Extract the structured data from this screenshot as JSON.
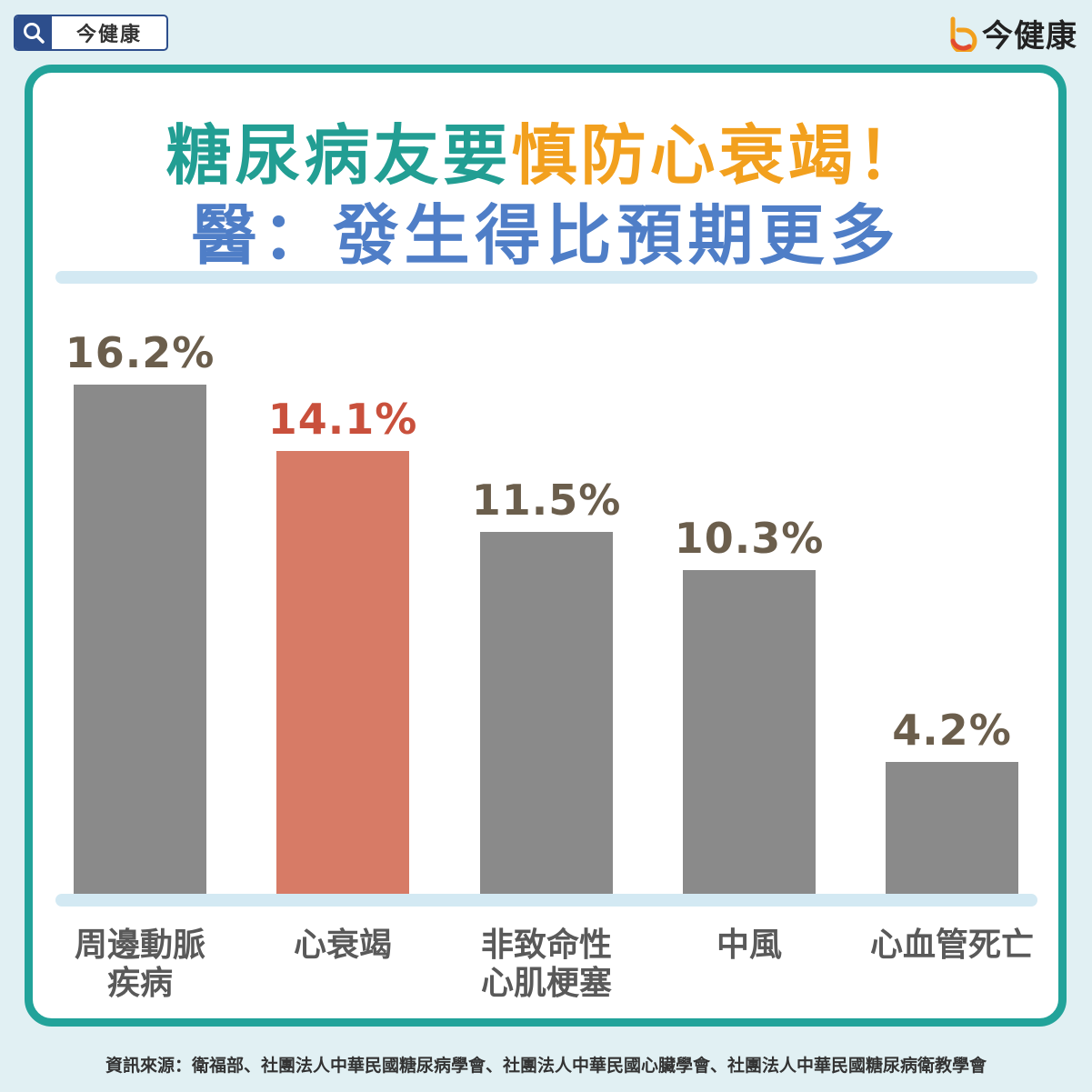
{
  "badge": {
    "text": "今健康",
    "icon": "search-icon"
  },
  "brand": {
    "logo_text": "今健康",
    "icon": "brand-logo-icon",
    "icon_colors": [
      "#f2a01e",
      "#e24a2f"
    ]
  },
  "title": {
    "line1_part1": "糖尿病友要",
    "line1_part2": "慎防心衰竭！",
    "line2": "醫：發生得比預期更多"
  },
  "colors": {
    "background": "#e1f0f3",
    "frame": "#22a39a",
    "title_green": "#229e93",
    "title_orange": "#f2a01e",
    "title_blue": "#4f7ec7",
    "bar_default": "#8a8a8a",
    "bar_highlight": "#d77b66",
    "label_default": "#6b5e4c",
    "label_highlight": "#c9503c"
  },
  "chart_data": {
    "type": "bar",
    "categories": [
      "周邊動脈\n疾病",
      "心衰竭",
      "非致命性\n心肌梗塞",
      "中風",
      "心血管死亡"
    ],
    "values": [
      16.2,
      14.1,
      11.5,
      10.3,
      4.2
    ],
    "value_labels": [
      "16.2%",
      "14.1%",
      "11.5%",
      "10.3%",
      "4.2%"
    ],
    "highlight_index": 1,
    "unit": "%",
    "ylim": [
      0,
      16.2
    ],
    "grid": false,
    "legend": "none"
  },
  "footer": {
    "source": "資訊來源：衛福部、社團法人中華民國糖尿病學會、社團法人中華民國心臟學會、社團法人中華民國糖尿病衛教學會"
  }
}
